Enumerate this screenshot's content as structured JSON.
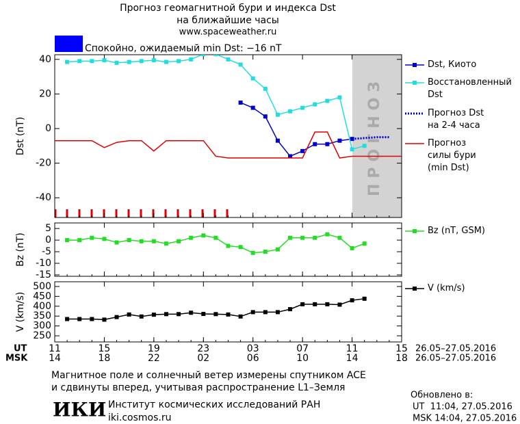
{
  "header": {
    "title": "Прогноз геомагнитной бури и индекса Dst",
    "subtitle": "на ближайшие часы",
    "site": "www.spaceweather.ru",
    "status": "Спокойно, ожидаемый min Dst: −16 nT"
  },
  "time_axis": {
    "xlim": [
      0,
      28
    ],
    "ut_label": "UT",
    "msk_label": "MSK",
    "ut_ticks": [
      {
        "value": 0,
        "label": "11"
      },
      {
        "value": 4,
        "label": "15"
      },
      {
        "value": 8,
        "label": "19"
      },
      {
        "value": 12,
        "label": "23"
      },
      {
        "value": 16,
        "label": "03"
      },
      {
        "value": 20,
        "label": "07"
      },
      {
        "value": 24,
        "label": "11"
      },
      {
        "value": 28,
        "label": "15"
      }
    ],
    "msk_ticks": [
      {
        "value": 0,
        "label": "14"
      },
      {
        "value": 4,
        "label": "18"
      },
      {
        "value": 8,
        "label": "22"
      },
      {
        "value": 12,
        "label": "02"
      },
      {
        "value": 16,
        "label": "06"
      },
      {
        "value": 20,
        "label": "10"
      },
      {
        "value": 24,
        "label": "14"
      },
      {
        "value": 28,
        "label": "18"
      }
    ],
    "ut_dates": "26.05–27.05.2016",
    "msk_dates": "26.05–27.05.2016"
  },
  "chart_data": [
    {
      "type": "line",
      "y_label": "Dst (nT)",
      "forecast_label": "ПРОГНОЗ",
      "ylim": [
        -51.4,
        42.7
      ],
      "yticks": [
        -40,
        -20,
        0,
        20,
        40
      ],
      "x": [
        0,
        1,
        2,
        3,
        4,
        5,
        6,
        7,
        8,
        9,
        10,
        11,
        12,
        13,
        14,
        15,
        16,
        17,
        18,
        19,
        20,
        21,
        22,
        23,
        24,
        25,
        26,
        27,
        28
      ],
      "series": [
        {
          "name": "Dst, Киото",
          "color": "#0000cc",
          "marker": "square",
          "dash": "solid",
          "values": [
            null,
            null,
            null,
            null,
            null,
            null,
            null,
            null,
            null,
            null,
            null,
            null,
            null,
            null,
            null,
            15,
            12,
            7,
            -7,
            -16,
            -13,
            -9,
            -9,
            -7,
            -6,
            null,
            null,
            null,
            null
          ]
        },
        {
          "name": "Восстановленный Dst",
          "color": "#22dddd",
          "marker": "square",
          "dash": "solid",
          "values": [
            null,
            38.5,
            39,
            39,
            39.5,
            38,
            38.5,
            39,
            39.5,
            38.5,
            39,
            40,
            43,
            43,
            40,
            37,
            29,
            23,
            8,
            10,
            12,
            14,
            16,
            18,
            -12,
            -10,
            null,
            null,
            null
          ]
        },
        {
          "name": "Прогноз Dst на 2-4 часа",
          "color": "#0000cc",
          "marker": "none",
          "dash": "dotted",
          "values": [
            null,
            null,
            null,
            null,
            null,
            null,
            null,
            null,
            null,
            null,
            null,
            null,
            null,
            null,
            null,
            null,
            null,
            null,
            null,
            null,
            null,
            null,
            null,
            null,
            -6,
            -5.5,
            -5,
            -5,
            null
          ]
        },
        {
          "name": "Прогноз силы бури (min Dst)",
          "color": "#dd0000",
          "marker": "none",
          "dash": "solid",
          "values": [
            -7,
            -7,
            -7,
            -7,
            -11,
            -8,
            -7,
            -7,
            -13,
            -7,
            -7,
            -7,
            -7,
            -16,
            -17,
            -17,
            -17,
            -17,
            -17,
            -17,
            -17,
            -2,
            -2,
            -17,
            -16,
            -16,
            -16,
            -16,
            -16
          ]
        }
      ]
    },
    {
      "type": "line",
      "y_label": "Bz (nT)",
      "ylim": [
        -15.6,
        7.4
      ],
      "yticks": [
        -15,
        -10,
        -5,
        0,
        5
      ],
      "x": [
        0,
        1,
        2,
        3,
        4,
        5,
        6,
        7,
        8,
        9,
        10,
        11,
        12,
        13,
        14,
        15,
        16,
        17,
        18,
        19,
        20,
        21,
        22,
        23,
        24,
        25,
        26,
        27,
        28
      ],
      "series": [
        {
          "name": "Bz (nT, GSM)",
          "color": "#22dd22",
          "marker": "square",
          "dash": "solid",
          "values": [
            null,
            0,
            0,
            1,
            0.5,
            -1,
            0,
            -0.5,
            -0.5,
            -1.5,
            -0.5,
            1,
            2,
            1,
            -2.5,
            -3,
            -5.5,
            -5,
            -4,
            1,
            1,
            1,
            2.5,
            1,
            -3.5,
            -1.5,
            null,
            null,
            null
          ]
        }
      ]
    },
    {
      "type": "line",
      "y_label": "V (km/s)",
      "ylim": [
        219,
        524
      ],
      "yticks": [
        250,
        300,
        350,
        400,
        450,
        500
      ],
      "x": [
        0,
        1,
        2,
        3,
        4,
        5,
        6,
        7,
        8,
        9,
        10,
        11,
        12,
        13,
        14,
        15,
        16,
        17,
        18,
        19,
        20,
        21,
        22,
        23,
        24,
        25,
        26,
        27,
        28
      ],
      "series": [
        {
          "name": "V (km/s)",
          "color": "#000000",
          "marker": "square",
          "dash": "solid",
          "values": [
            null,
            335,
            335,
            335,
            332,
            345,
            358,
            348,
            357,
            360,
            360,
            367,
            361,
            360,
            358,
            348,
            370,
            370,
            370,
            385,
            410,
            410,
            410,
            408,
            430,
            438,
            null,
            null,
            null
          ]
        }
      ]
    }
  ],
  "footer": {
    "note_1": "Магнитное поле и солнечный ветер измерены спутником ACE",
    "note_2": "и сдвинуты вперед, учитывая распространение L1–Земля",
    "logo": "ИКИ",
    "institute": "Институт космических исследований РАН",
    "url": "iki.cosmos.ru",
    "updated": "Обновлено в:",
    "updated_ut": "UT  11:04, 27.05.2016",
    "updated_msk": "MSK 14:04, 27.05.2016"
  }
}
